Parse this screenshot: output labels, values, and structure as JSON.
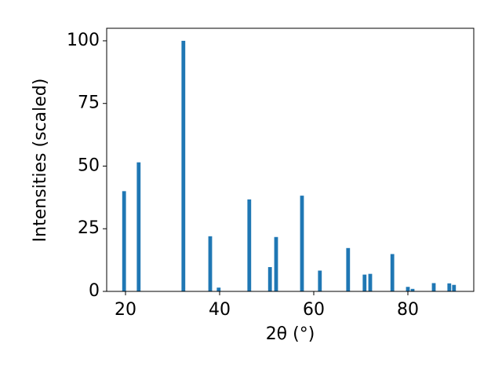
{
  "chart_data": {
    "type": "bar",
    "xlabel": "2θ (°)",
    "ylabel": "Intensities (scaled)",
    "x": [
      19.7,
      22.8,
      32.3,
      38.0,
      39.8,
      46.3,
      50.7,
      52.0,
      57.5,
      61.3,
      67.3,
      70.8,
      72.0,
      76.7,
      80.0,
      81.0,
      85.5,
      88.8,
      89.8
    ],
    "values": [
      40,
      51.5,
      100,
      22,
      1.5,
      36.7,
      9.7,
      21.7,
      38.2,
      8.3,
      17.3,
      6.7,
      7.0,
      14.9,
      1.8,
      1.0,
      3.3,
      3.2,
      2.6
    ],
    "color": "#1f77b4",
    "xlim": [
      16,
      94
    ],
    "xticks": [
      20,
      40,
      60,
      80
    ],
    "ylim": [
      0,
      105
    ],
    "yticks": [
      0,
      25,
      50,
      75,
      100
    ],
    "grid": false
  }
}
